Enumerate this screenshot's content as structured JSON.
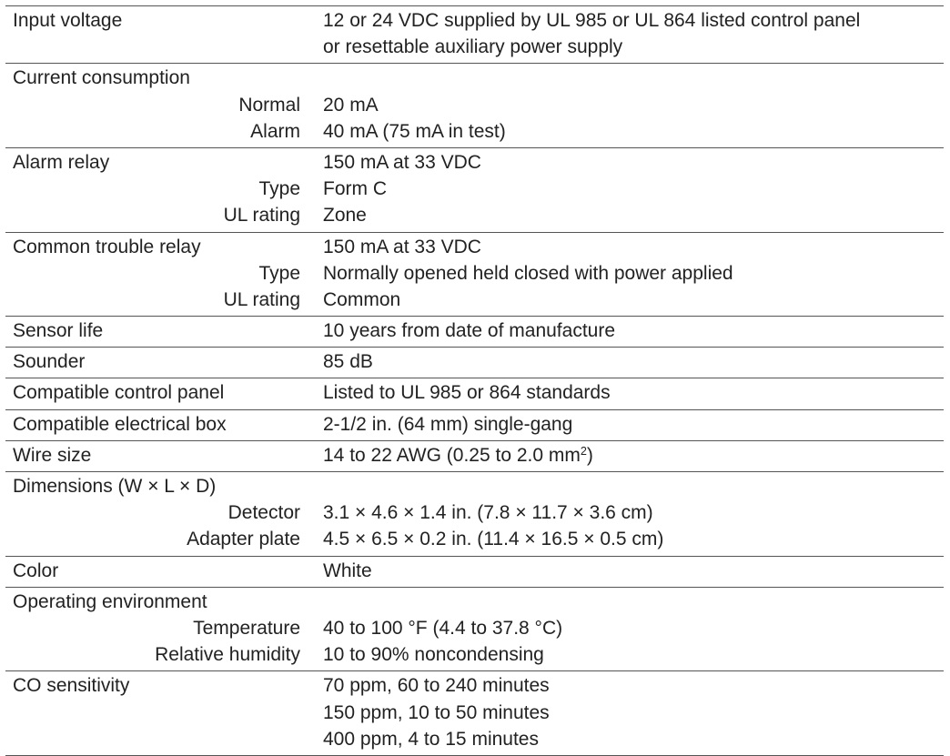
{
  "specs": [
    {
      "label": "Input voltage",
      "lines": [
        {
          "label": "",
          "value": "12 or 24 VDC supplied by UL 985 or UL 864 listed control panel"
        },
        {
          "label": "",
          "value": "or resettable auxiliary power supply"
        }
      ]
    },
    {
      "label": "Current consumption",
      "lines": [
        {
          "label": "Normal",
          "value": "20 mA"
        },
        {
          "label": "Alarm",
          "value": "40 mA (75 mA in test)"
        }
      ]
    },
    {
      "label": "Alarm relay",
      "value": "150 mA at 33 VDC",
      "lines": [
        {
          "label": "Type",
          "value": "Form C"
        },
        {
          "label": "UL rating",
          "value": "Zone"
        }
      ]
    },
    {
      "label": "Common trouble relay",
      "value": "150 mA at 33 VDC",
      "lines": [
        {
          "label": "Type",
          "value": "Normally opened held closed with power applied"
        },
        {
          "label": "UL rating",
          "value": "Common"
        }
      ]
    },
    {
      "label": "Sensor life",
      "value": "10 years from date of manufacture"
    },
    {
      "label": "Sounder",
      "value": "85 dB"
    },
    {
      "label": "Compatible control panel",
      "value": "Listed to UL 985 or 864 standards"
    },
    {
      "label": "Compatible electrical box",
      "value": "2-1/2 in. (64 mm) single-gang"
    },
    {
      "label": "Wire size",
      "value": "14 to 22 AWG (0.25 to 2.0 mm",
      "value_sup": "2",
      "value_suffix": ")"
    },
    {
      "label": "Dimensions (W × L × D)",
      "lines": [
        {
          "label": "Detector",
          "value": "3.1 × 4.6 × 1.4 in. (7.8 × 11.7 × 3.6 cm)"
        },
        {
          "label": "Adapter plate",
          "value": "4.5 × 6.5 × 0.2 in. (11.4 × 16.5 × 0.5 cm)"
        }
      ]
    },
    {
      "label": "Color",
      "value": "White"
    },
    {
      "label": "Operating environment",
      "lines": [
        {
          "label": "Temperature",
          "value": "40 to 100 °F (4.4 to 37.8 °C)"
        },
        {
          "label": "Relative humidity",
          "value": "10 to 90% noncondensing"
        }
      ]
    },
    {
      "label": "CO sensitivity",
      "value": "70 ppm, 60 to 240 minutes",
      "lines": [
        {
          "label": "",
          "value": "150 ppm, 10 to 50 minutes"
        },
        {
          "label": "",
          "value": "400 ppm, 4 to 15 minutes"
        }
      ]
    }
  ]
}
